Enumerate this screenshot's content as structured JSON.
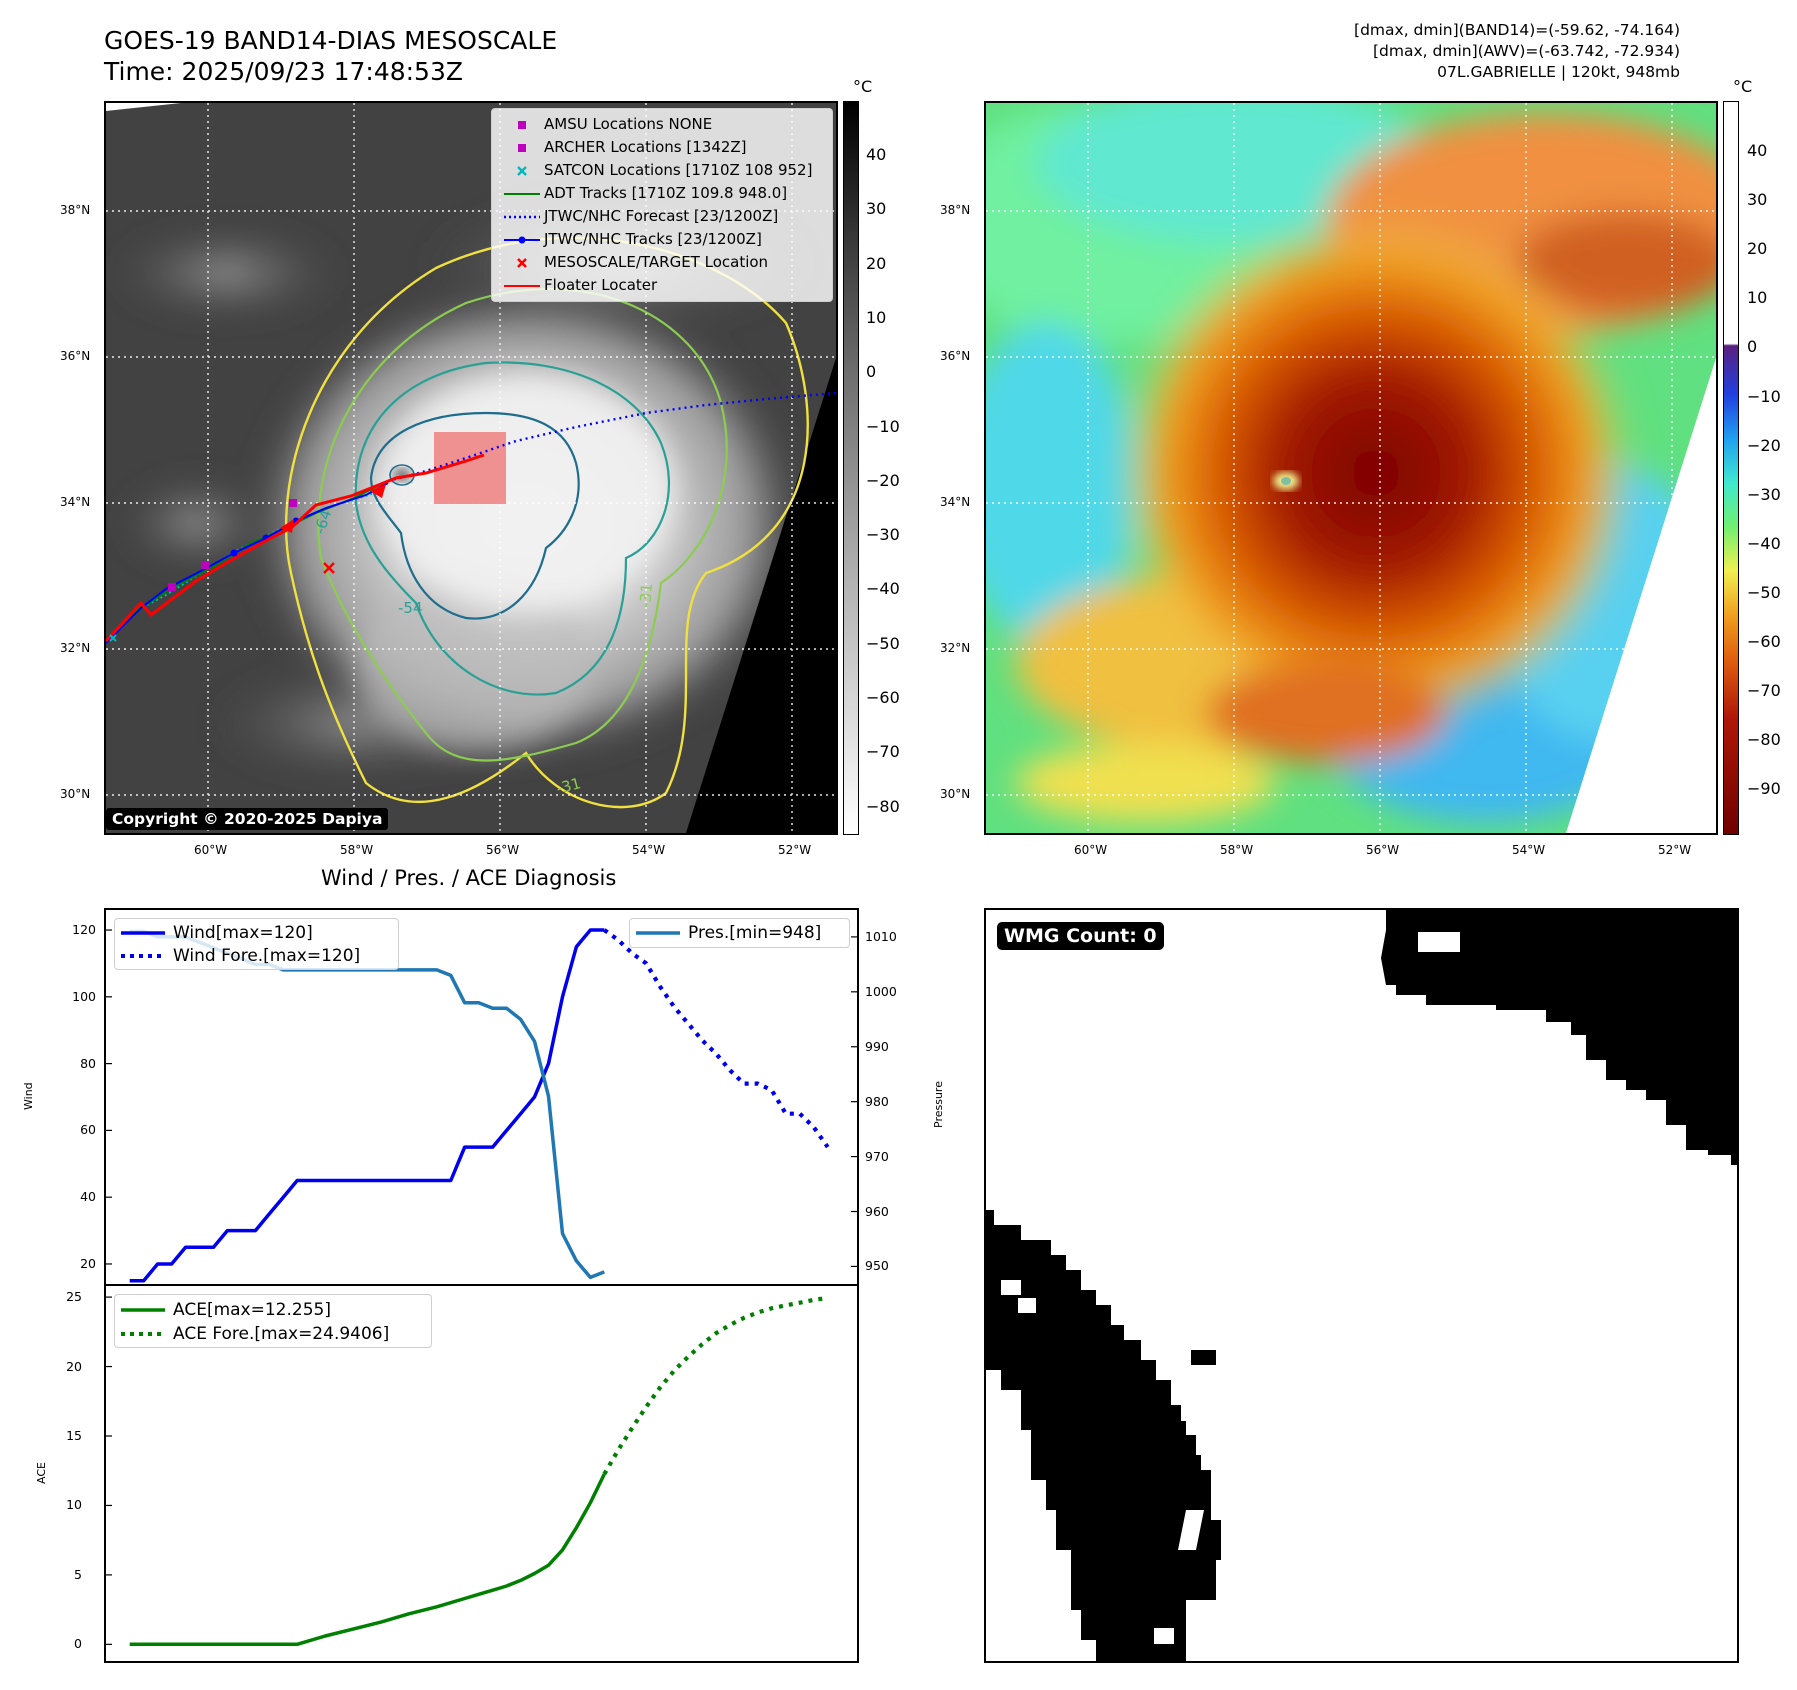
{
  "header": {
    "title_line1": "GOES-19 BAND14-DIAS MESOSCALE",
    "title_line2": "Time: 2025/09/23 17:48:53Z",
    "info_line1": "[dmax, dmin](BAND14)=(-59.62, -74.164)",
    "info_line2": "[dmax, dmin](AWV)=(-63.742, -72.934)",
    "info_line3": "07L.GABRIELLE | 120kt, 948mb"
  },
  "map_axes": {
    "lat_labels": [
      "38°N",
      "36°N",
      "34°N",
      "32°N",
      "30°N"
    ],
    "lon_labels": [
      "60°W",
      "58°W",
      "56°W",
      "54°W",
      "52°W"
    ]
  },
  "colorbar_left": {
    "unit": "°C",
    "ticks": [
      "40",
      "30",
      "20",
      "10",
      "0",
      "−10",
      "−20",
      "−30",
      "−40",
      "−50",
      "−60",
      "−70",
      "−80"
    ]
  },
  "colorbar_right": {
    "unit": "°C",
    "ticks": [
      "40",
      "30",
      "20",
      "10",
      "0",
      "−10",
      "−20",
      "−30",
      "−40",
      "−50",
      "−60",
      "−70",
      "−80",
      "−90"
    ]
  },
  "contour_labels": [
    "-64",
    "-54",
    "-31",
    "-31"
  ],
  "legend": [
    {
      "label": "AMSU Locations NONE",
      "marker": "square",
      "color": "#c000c0"
    },
    {
      "label": "ARCHER Locations [1342Z]",
      "marker": "square",
      "color": "#c000c0"
    },
    {
      "label": "SATCON Locations [1710Z 108 952]",
      "marker": "x",
      "color": "#00b8b8"
    },
    {
      "label": "ADT Tracks [1710Z 109.8 948.0]",
      "marker": "line",
      "color": "#008000"
    },
    {
      "label": "JTWC/NHC Forecast [23/1200Z]",
      "marker": "dotted",
      "color": "#0000ff"
    },
    {
      "label": "JTWC/NHC Tracks [23/1200Z]",
      "marker": "line-dot",
      "color": "#0000ff"
    },
    {
      "label": "MESOSCALE/TARGET Location",
      "marker": "x",
      "color": "#ff0000"
    },
    {
      "label": "Floater Locater",
      "marker": "line",
      "color": "#ff0000"
    }
  ],
  "copyright": "Copyright © 2020-2025 Dapiya",
  "wmg_label": "WMG Count: 0",
  "chart_data": [
    {
      "type": "line",
      "title": "Wind / Pres. / ACE Diagnosis",
      "ylabel": "Wind",
      "ylabel_right": "Pressure",
      "ylim": [
        14,
        126
      ],
      "ylim_right": [
        946.8,
        1014.9
      ],
      "yticks": [
        20,
        40,
        60,
        80,
        100,
        120
      ],
      "yticks_right": [
        950,
        960,
        970,
        980,
        990,
        1000,
        1010
      ],
      "series": [
        {
          "name": "Wind[max=120]",
          "axis": "left",
          "style": "solid",
          "color": "#0000ee",
          "x": [
            0,
            1,
            2,
            3,
            4,
            5,
            6,
            7,
            8,
            9,
            10,
            11,
            12,
            13,
            14,
            15,
            16,
            17,
            18,
            19,
            20,
            21,
            22,
            23,
            24,
            25,
            26,
            27,
            28,
            29,
            30,
            31,
            32,
            33,
            34
          ],
          "values": [
            15,
            15,
            20,
            20,
            25,
            25,
            25,
            30,
            30,
            30,
            35,
            40,
            45,
            45,
            45,
            45,
            45,
            45,
            45,
            45,
            45,
            45,
            45,
            45,
            55,
            55,
            55,
            60,
            65,
            70,
            80,
            100,
            115,
            120,
            120
          ]
        },
        {
          "name": "Wind Fore.[max=120]",
          "axis": "left",
          "style": "dotted",
          "color": "#0000ee",
          "x": [
            34,
            35,
            36,
            37,
            38,
            39,
            40,
            41,
            42,
            43,
            44,
            45,
            46,
            47,
            48,
            49,
            50
          ],
          "values": [
            120,
            117,
            113,
            110,
            103,
            97,
            92,
            87,
            83,
            78,
            74,
            74,
            72,
            65,
            65,
            61,
            55
          ]
        },
        {
          "name": "Pres.[min=948]",
          "axis": "right",
          "style": "solid",
          "color": "#1f77b4",
          "x": [
            0,
            1,
            2,
            3,
            4,
            5,
            6,
            7,
            8,
            9,
            10,
            11,
            12,
            13,
            14,
            15,
            16,
            17,
            18,
            19,
            20,
            21,
            22,
            23,
            24,
            25,
            26,
            27,
            28,
            29,
            30,
            31,
            32,
            33,
            34
          ],
          "values": [
            1011,
            1011,
            1010,
            1010,
            1010,
            1009,
            1008,
            1007,
            1006,
            1005,
            1005,
            1004,
            1004,
            1004,
            1004,
            1004,
            1004,
            1004,
            1004,
            1004,
            1004,
            1004,
            1004,
            1003,
            998,
            998,
            997,
            997,
            995,
            991,
            981,
            956,
            951,
            948,
            949
          ]
        }
      ]
    },
    {
      "type": "line",
      "ylabel": "ACE",
      "ylim": [
        -1.2,
        25.8
      ],
      "yticks": [
        0,
        5,
        10,
        15,
        20,
        25
      ],
      "series": [
        {
          "name": "ACE[max=12.255]",
          "style": "solid",
          "color": "#008000",
          "x": [
            0,
            2,
            4,
            6,
            8,
            10,
            12,
            14,
            16,
            18,
            20,
            22,
            24,
            25,
            26,
            27,
            28,
            29,
            30,
            31,
            32,
            33,
            34
          ],
          "values": [
            0,
            0,
            0,
            0,
            0,
            0,
            0,
            0.6,
            1.1,
            1.6,
            2.2,
            2.7,
            3.3,
            3.6,
            3.9,
            4.2,
            4.6,
            5.1,
            5.7,
            6.8,
            8.4,
            10.2,
            12.255
          ]
        },
        {
          "name": "ACE Fore.[max=24.9406]",
          "style": "dotted",
          "color": "#008000",
          "x": [
            34,
            35,
            36,
            37,
            38,
            39,
            40,
            41,
            42,
            43,
            44,
            45,
            46,
            47,
            48,
            49,
            50
          ],
          "values": [
            12.255,
            14.0,
            15.6,
            17.1,
            18.5,
            19.7,
            20.7,
            21.6,
            22.4,
            23.0,
            23.5,
            23.9,
            24.2,
            24.4,
            24.6,
            24.8,
            24.9406
          ]
        }
      ]
    }
  ]
}
